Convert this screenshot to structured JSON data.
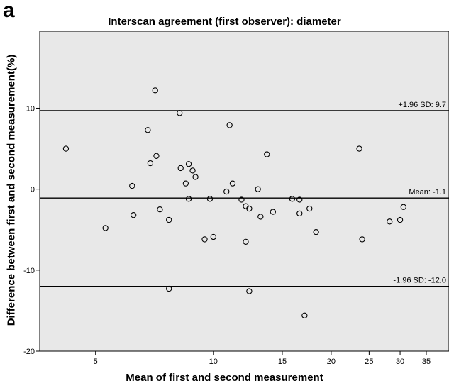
{
  "panel_label": "a",
  "chart_data": {
    "type": "scatter",
    "title": "Interscan agreement (first observer): diameter",
    "xlabel": "Mean of first and second measurement",
    "ylabel": "Difference between first and second measurement(%)",
    "x_scale": "log",
    "xlim": [
      3.6,
      40
    ],
    "ylim": [
      -20,
      19.5
    ],
    "x_ticks": [
      5,
      10,
      15,
      20,
      25,
      30,
      35
    ],
    "y_ticks": [
      -20,
      -10,
      0,
      10
    ],
    "grid": false,
    "background_color": "#e8e8e8",
    "marker": "open-circle",
    "reference_lines": [
      {
        "label": "+1.96 SD: 9.7",
        "y": 9.7
      },
      {
        "label": "Mean: -1.1",
        "y": -1.1
      },
      {
        "label": "-1.96 SD: -12.0",
        "y": -12.0
      }
    ],
    "points": [
      {
        "x": 4.2,
        "y": 5.0
      },
      {
        "x": 5.3,
        "y": -4.8
      },
      {
        "x": 6.2,
        "y": 0.4
      },
      {
        "x": 6.25,
        "y": -3.2
      },
      {
        "x": 6.8,
        "y": 7.3
      },
      {
        "x": 6.9,
        "y": 3.2
      },
      {
        "x": 7.1,
        "y": 12.2
      },
      {
        "x": 7.15,
        "y": 4.1
      },
      {
        "x": 7.3,
        "y": -2.5
      },
      {
        "x": 7.7,
        "y": -3.8
      },
      {
        "x": 7.7,
        "y": -12.3
      },
      {
        "x": 8.2,
        "y": 9.4
      },
      {
        "x": 8.25,
        "y": 2.6
      },
      {
        "x": 8.5,
        "y": 0.7
      },
      {
        "x": 8.65,
        "y": 3.1
      },
      {
        "x": 8.65,
        "y": -1.2
      },
      {
        "x": 8.85,
        "y": 2.3
      },
      {
        "x": 9.0,
        "y": 1.5
      },
      {
        "x": 9.5,
        "y": -6.2
      },
      {
        "x": 9.8,
        "y": -1.2
      },
      {
        "x": 10.0,
        "y": -5.9
      },
      {
        "x": 10.8,
        "y": -0.3
      },
      {
        "x": 11.0,
        "y": 7.9
      },
      {
        "x": 11.2,
        "y": 0.7
      },
      {
        "x": 11.8,
        "y": -1.3
      },
      {
        "x": 12.1,
        "y": -2.1
      },
      {
        "x": 12.1,
        "y": -6.5
      },
      {
        "x": 12.35,
        "y": -2.4
      },
      {
        "x": 12.35,
        "y": -12.6
      },
      {
        "x": 13.0,
        "y": 0.0
      },
      {
        "x": 13.2,
        "y": -3.4
      },
      {
        "x": 13.7,
        "y": 4.3
      },
      {
        "x": 14.2,
        "y": -2.8
      },
      {
        "x": 15.9,
        "y": -1.2
      },
      {
        "x": 16.6,
        "y": -1.3
      },
      {
        "x": 16.6,
        "y": -3.0
      },
      {
        "x": 17.1,
        "y": -15.6
      },
      {
        "x": 17.6,
        "y": -2.4
      },
      {
        "x": 18.3,
        "y": -5.3
      },
      {
        "x": 23.6,
        "y": 5.0
      },
      {
        "x": 24.0,
        "y": -6.2
      },
      {
        "x": 28.2,
        "y": -4.0
      },
      {
        "x": 30.0,
        "y": -3.8
      },
      {
        "x": 30.6,
        "y": -2.2
      }
    ]
  }
}
